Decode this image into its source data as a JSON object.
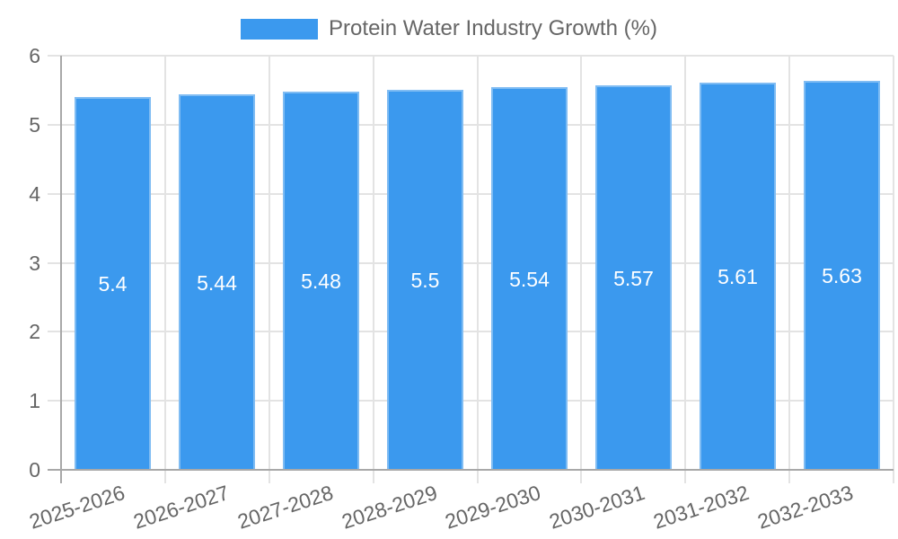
{
  "legend": {
    "label": "Protein Water Industry Growth (%)"
  },
  "chart_data": {
    "type": "bar",
    "title": "Protein Water Industry Growth (%)",
    "categories": [
      "2025-2026",
      "2026-2027",
      "2027-2028",
      "2028-2029",
      "2029-2030",
      "2030-2031",
      "2031-2032",
      "2032-2033"
    ],
    "series": [
      {
        "name": "Protein Water Industry Growth (%)",
        "values": [
          5.4,
          5.44,
          5.48,
          5.5,
          5.54,
          5.57,
          5.61,
          5.63
        ]
      }
    ],
    "value_labels": [
      "5.4",
      "5.44",
      "5.48",
      "5.5",
      "5.54",
      "5.57",
      "5.61",
      "5.63"
    ],
    "xlabel": "",
    "ylabel": "",
    "ylim": [
      0,
      6
    ],
    "yticks": [
      "0",
      "1",
      "2",
      "3",
      "4",
      "5",
      "6"
    ],
    "grid": true,
    "legend_position": "top",
    "colors": {
      "bar": "#3B99EE",
      "bar_border": "#7FBCF3",
      "grid": "#E3E3E3",
      "axis": "#A8A8A8",
      "text": "#666666",
      "value_text": "#FFFFFF",
      "background": "#FFFFFF"
    }
  }
}
